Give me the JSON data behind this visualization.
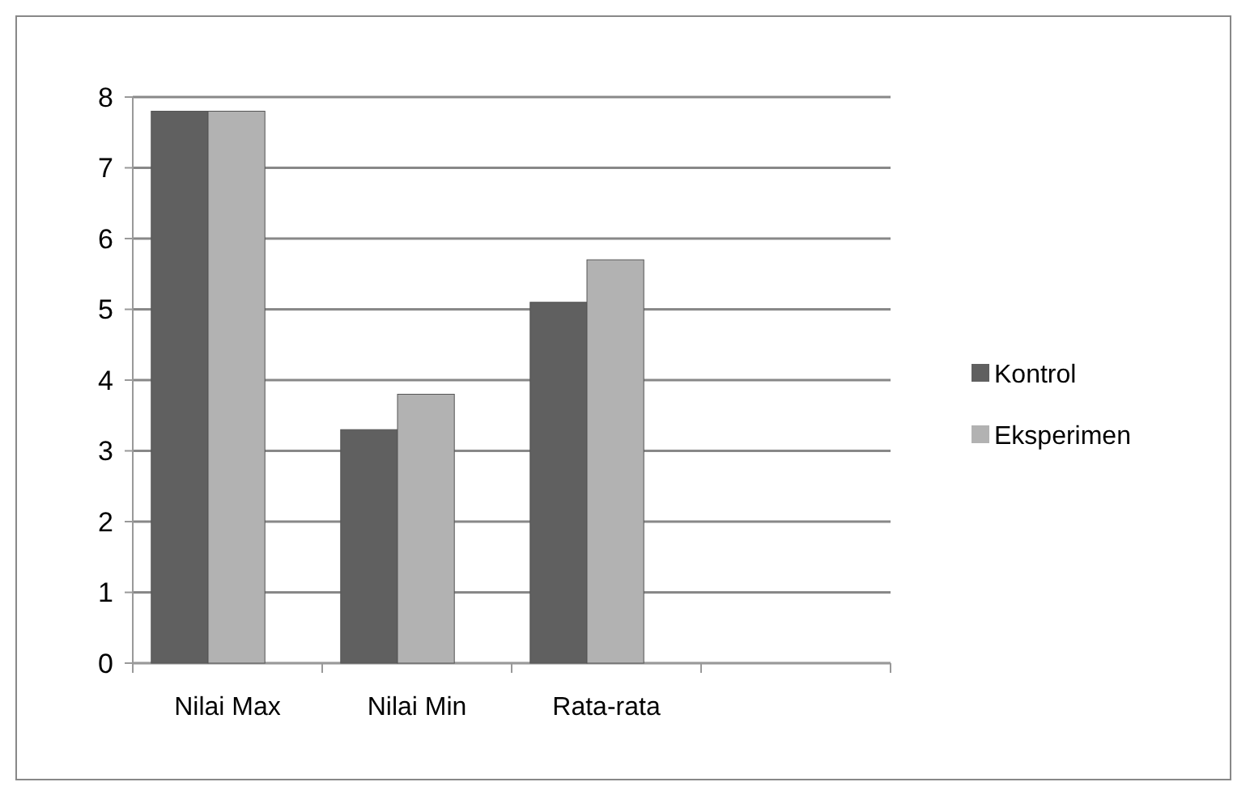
{
  "chart_data": {
    "type": "bar",
    "categories": [
      "Nilai Max",
      "Nilai Min",
      "Rata-rata",
      null
    ],
    "series": [
      {
        "name": "Kontrol",
        "color": "#606060",
        "values": [
          7.8,
          3.3,
          5.1,
          null
        ]
      },
      {
        "name": "Eksperimen",
        "color": "#b2b2b2",
        "values": [
          7.8,
          3.8,
          5.7,
          null
        ]
      }
    ],
    "ylim": [
      0,
      8
    ],
    "yticks": [
      0,
      1,
      2,
      3,
      4,
      5,
      6,
      7,
      8
    ],
    "grid": "y",
    "legend": "right"
  }
}
